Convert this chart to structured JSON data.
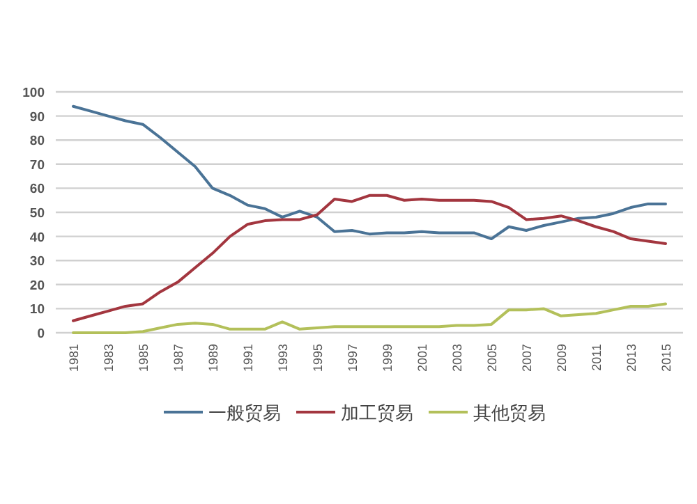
{
  "chart_data": {
    "type": "line",
    "x": [
      1981,
      1982,
      1983,
      1984,
      1985,
      1986,
      1987,
      1988,
      1989,
      1990,
      1991,
      1992,
      1993,
      1994,
      1995,
      1996,
      1997,
      1998,
      1999,
      2000,
      2001,
      2002,
      2003,
      2004,
      2005,
      2006,
      2007,
      2008,
      2009,
      2010,
      2011,
      2012,
      2013,
      2014,
      2015
    ],
    "series": [
      {
        "name": "一般贸易",
        "color": "#4a7396",
        "values": [
          94,
          92,
          90,
          88,
          86.5,
          81,
          75,
          69,
          60,
          57,
          53,
          51.5,
          48,
          50.5,
          48,
          42,
          42.5,
          41,
          41.5,
          41.5,
          42,
          41.5,
          41.5,
          41.5,
          39,
          44,
          42.5,
          44.5,
          46,
          47.5,
          48,
          49.5,
          52,
          53.5,
          53.5
        ]
      },
      {
        "name": "加工贸易",
        "color": "#a3363f",
        "values": [
          5,
          7,
          9,
          11,
          12,
          17,
          21,
          27,
          33,
          40,
          45,
          46.5,
          47,
          47,
          49,
          55.5,
          54.5,
          57,
          57,
          55,
          55.5,
          55,
          55,
          55,
          54.5,
          52,
          47,
          47.5,
          48.5,
          46.5,
          44,
          42,
          39,
          38,
          37
        ]
      },
      {
        "name": "其他贸易",
        "color": "#b3c05a",
        "values": [
          0,
          0,
          0,
          0,
          0.5,
          2,
          3.5,
          4,
          3.5,
          1.5,
          1.5,
          1.5,
          4.5,
          1.5,
          2,
          2.5,
          2.5,
          2.5,
          2.5,
          2.5,
          2.5,
          2.5,
          3,
          3,
          3.5,
          9.5,
          9.5,
          10,
          7,
          7.5,
          8,
          9.5,
          11,
          11,
          12
        ]
      }
    ],
    "xlim": [
      1980,
      2016
    ],
    "xticks": [
      1981,
      1983,
      1985,
      1987,
      1989,
      1991,
      1993,
      1995,
      1997,
      1999,
      2001,
      2003,
      2005,
      2007,
      2009,
      2011,
      2013,
      2015
    ],
    "ylim": [
      0,
      100
    ],
    "yticks": [
      0,
      10,
      20,
      30,
      40,
      50,
      60,
      70,
      80,
      90,
      100
    ],
    "grid": "y",
    "legend": "bottom",
    "marker": "none",
    "line_style": "solid"
  }
}
